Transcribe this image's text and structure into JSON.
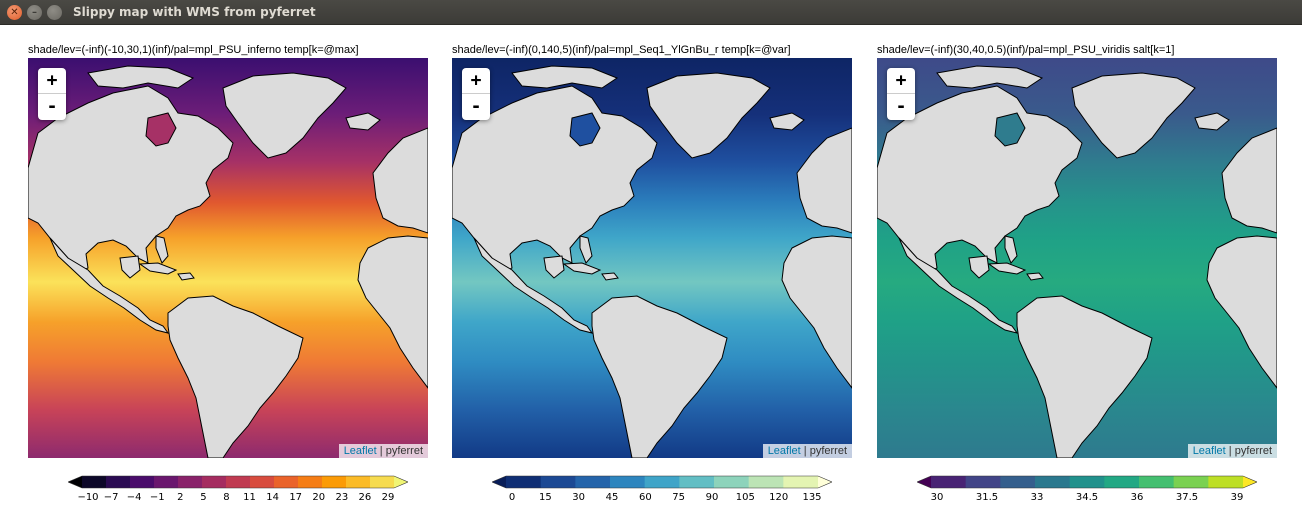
{
  "window": {
    "title": "Slippy map with WMS from pyferret"
  },
  "attribution": {
    "leaflet": "Leaflet",
    "separator": " | ",
    "provider": "pyferret"
  },
  "zoom": {
    "in_label": "+",
    "out_label": "-"
  },
  "maps": [
    {
      "caption": "shade/lev=(-inf)(-10,30,1)(inf)/pal=mpl_PSU_inferno temp[k=@max]",
      "variable": "temp",
      "palette": "inferno",
      "colors": {
        "north": "#3b0f70",
        "high": "#6c1d78",
        "mid_high": "#a63166",
        "mid": "#e0572f",
        "warm": "#f6a12a",
        "tropic": "#fbe25a",
        "south_mid": "#ef7a35",
        "south": "#c84358",
        "far_south": "#8d2a6e",
        "low": "#000004",
        "over": "#fcffa4"
      },
      "colorbar_labels": [
        "−10",
        "−7",
        "−4",
        "−1",
        "2",
        "5",
        "8",
        "11",
        "14",
        "17",
        "20",
        "23",
        "26",
        "29"
      ],
      "colorbar_colors": [
        "#000004",
        "#0d0829",
        "#2a0b52",
        "#4a0c6b",
        "#6a176e",
        "#89226a",
        "#a52c60",
        "#c03a51",
        "#d84c3e",
        "#ea632a",
        "#f57d15",
        "#fb9b06",
        "#fbbb27",
        "#f6db4f",
        "#f0f574"
      ]
    },
    {
      "caption": "shade/lev=(-inf)(0,140,5)(inf)/pal=mpl_Seq1_YlGnBu_r temp[k=@var]",
      "variable": "temp",
      "palette": "YlGnBu_r",
      "colors": {
        "north": "#0e2565",
        "high": "#15307a",
        "mid_high": "#1f50a0",
        "mid": "#2b7ebc",
        "warm": "#3fa6c9",
        "tropic": "#73c7c1",
        "south_mid": "#2f8cc2",
        "south": "#2260a8",
        "far_south": "#123a86",
        "low": "#081d58",
        "over": "#ffffd9"
      },
      "colorbar_labels": [
        "0",
        "15",
        "30",
        "45",
        "60",
        "75",
        "90",
        "105",
        "120",
        "135"
      ],
      "colorbar_colors": [
        "#081d58",
        "#0f2e74",
        "#1c4994",
        "#2464aa",
        "#2d85be",
        "#3fa4c8",
        "#62bec4",
        "#8dd3bb",
        "#bce4b5",
        "#e4f4b2",
        "#ffffd9"
      ]
    },
    {
      "caption": "shade/lev=(-inf)(30,40,0.5)(inf)/pal=mpl_PSU_viridis salt[k=1]",
      "variable": "salt",
      "palette": "viridis",
      "colors": {
        "north": "#3e4a89",
        "high": "#3a5a8c",
        "mid_high": "#2f7c8e",
        "mid": "#25938b",
        "warm": "#1fa187",
        "tropic": "#26aa80",
        "south_mid": "#22958a",
        "south": "#2a878e",
        "far_south": "#2e7a8e",
        "low": "#440154",
        "over": "#fde725"
      },
      "colorbar_labels": [
        "30",
        "31.5",
        "33",
        "34.5",
        "36",
        "37.5",
        "39"
      ],
      "colorbar_colors": [
        "#440154",
        "#482374",
        "#414487",
        "#355f8d",
        "#2a788e",
        "#21918c",
        "#22a884",
        "#44bf70",
        "#7ad151",
        "#bddf26",
        "#fde725"
      ]
    }
  ]
}
